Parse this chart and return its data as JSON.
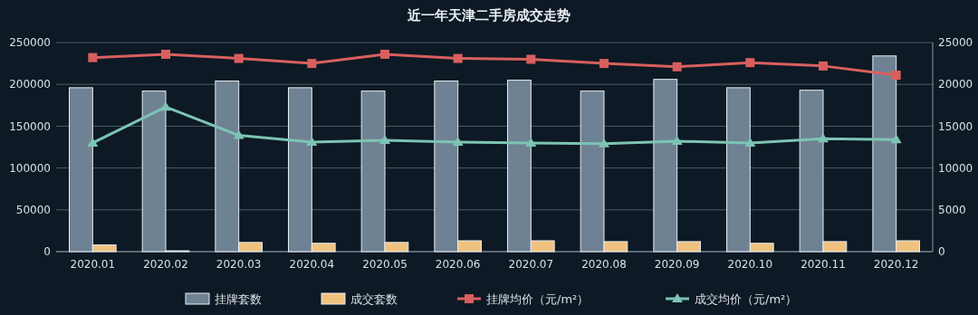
{
  "chart_data": {
    "type": "bar",
    "title": "近一年天津二手房成交走势",
    "categories": [
      "2020.01",
      "2020.02",
      "2020.03",
      "2020.04",
      "2020.05",
      "2020.06",
      "2020.07",
      "2020.08",
      "2020.09",
      "2020.10",
      "2020.11",
      "2020.12"
    ],
    "series": [
      {
        "name": "挂牌套数",
        "color": "#6f8294",
        "values": [
          196000,
          192000,
          204000,
          196000,
          192000,
          204000,
          205000,
          192000,
          206000,
          196000,
          193000,
          234000
        ]
      },
      {
        "name": "成交套数",
        "color": "#f0c27f",
        "values": [
          8000,
          1000,
          11000,
          10000,
          11000,
          13000,
          13000,
          12000,
          12000,
          10000,
          12000,
          13000
        ]
      },
      {
        "name": "挂牌均价（元/m²）",
        "type": "line",
        "axis": "y2",
        "marker": "square",
        "color": "#d95f5f",
        "values": [
          23200,
          23600,
          23100,
          22500,
          23600,
          23100,
          23000,
          22500,
          22100,
          22600,
          22200,
          21100
        ]
      },
      {
        "name": "成交均价（元/m²）",
        "type": "line",
        "axis": "y2",
        "marker": "triangle",
        "color": "#7cc4b4",
        "values": [
          13000,
          17300,
          13900,
          13100,
          13300,
          13100,
          13000,
          12900,
          13200,
          13000,
          13500,
          13400
        ]
      }
    ],
    "ylim": [
      0,
      250000
    ],
    "yticks": [
      0,
      50000,
      100000,
      150000,
      200000,
      250000
    ],
    "y2lim": [
      0,
      25000
    ],
    "y2ticks": [
      0,
      5000,
      10000,
      15000,
      20000,
      25000
    ],
    "grid": "y",
    "legend": "bottom"
  }
}
